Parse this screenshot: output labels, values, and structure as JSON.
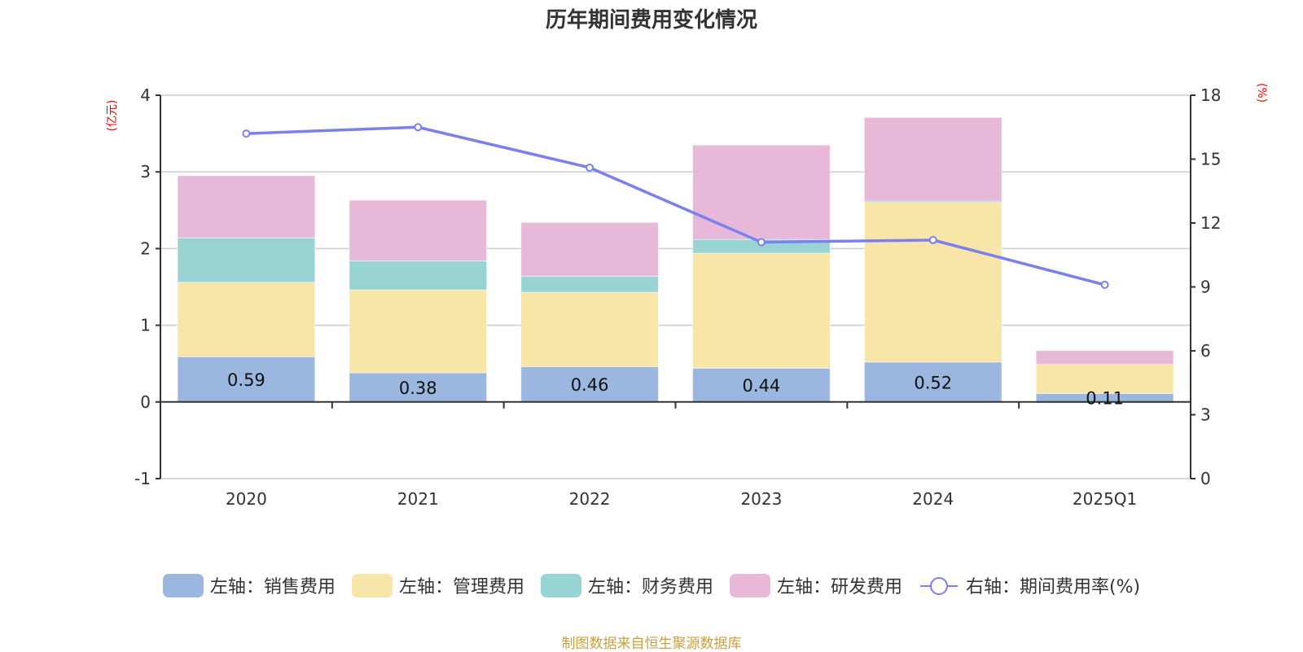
{
  "chart_data": {
    "type": "bar",
    "stacked": true,
    "title": "历年期间费用变化情况",
    "categories": [
      "2020",
      "2021",
      "2022",
      "2023",
      "2024",
      "2025Q1"
    ],
    "left_axis": {
      "unit": "(亿元)",
      "range": [
        -1,
        4
      ],
      "ticks": [
        "4",
        "3",
        "2",
        "1",
        "0",
        "-1"
      ],
      "tick_values": [
        4,
        3,
        2,
        1,
        0,
        -1
      ]
    },
    "right_axis": {
      "unit": "(%)",
      "range": [
        0,
        18
      ],
      "ticks": [
        "18",
        "15",
        "12",
        "9",
        "6",
        "3",
        "0"
      ],
      "tick_values": [
        18,
        15,
        12,
        9,
        6,
        3,
        0
      ]
    },
    "grid": true,
    "legend_position": "bottom",
    "series": [
      {
        "name": "左轴：销售费用",
        "axis": "left",
        "kind": "bar",
        "color": "#9bb7e0",
        "values": [
          0.59,
          0.38,
          0.46,
          0.44,
          0.52,
          0.11
        ],
        "data_labels": [
          "0.59",
          "0.38",
          "0.46",
          "0.44",
          "0.52",
          "0.11"
        ]
      },
      {
        "name": "左轴：管理费用",
        "axis": "left",
        "kind": "bar",
        "color": "#f8e6a8",
        "values": [
          0.97,
          1.08,
          0.97,
          1.5,
          2.09,
          0.38
        ]
      },
      {
        "name": "左轴：财务费用",
        "axis": "left",
        "kind": "bar",
        "color": "#98d4d4",
        "values": [
          0.58,
          0.38,
          0.21,
          0.18,
          0.01,
          -0.01
        ]
      },
      {
        "name": "左轴：研发费用",
        "axis": "left",
        "kind": "bar",
        "color": "#e8b8d8",
        "values": [
          0.81,
          0.79,
          0.7,
          1.23,
          1.09,
          0.18
        ]
      },
      {
        "name": "右轴：期间费用率(%)",
        "axis": "right",
        "kind": "line",
        "color": "#7b7ff0",
        "values": [
          16.2,
          16.5,
          14.6,
          11.1,
          11.2,
          9.1
        ]
      }
    ]
  },
  "source_note": "制图数据来自恒生聚源数据库"
}
